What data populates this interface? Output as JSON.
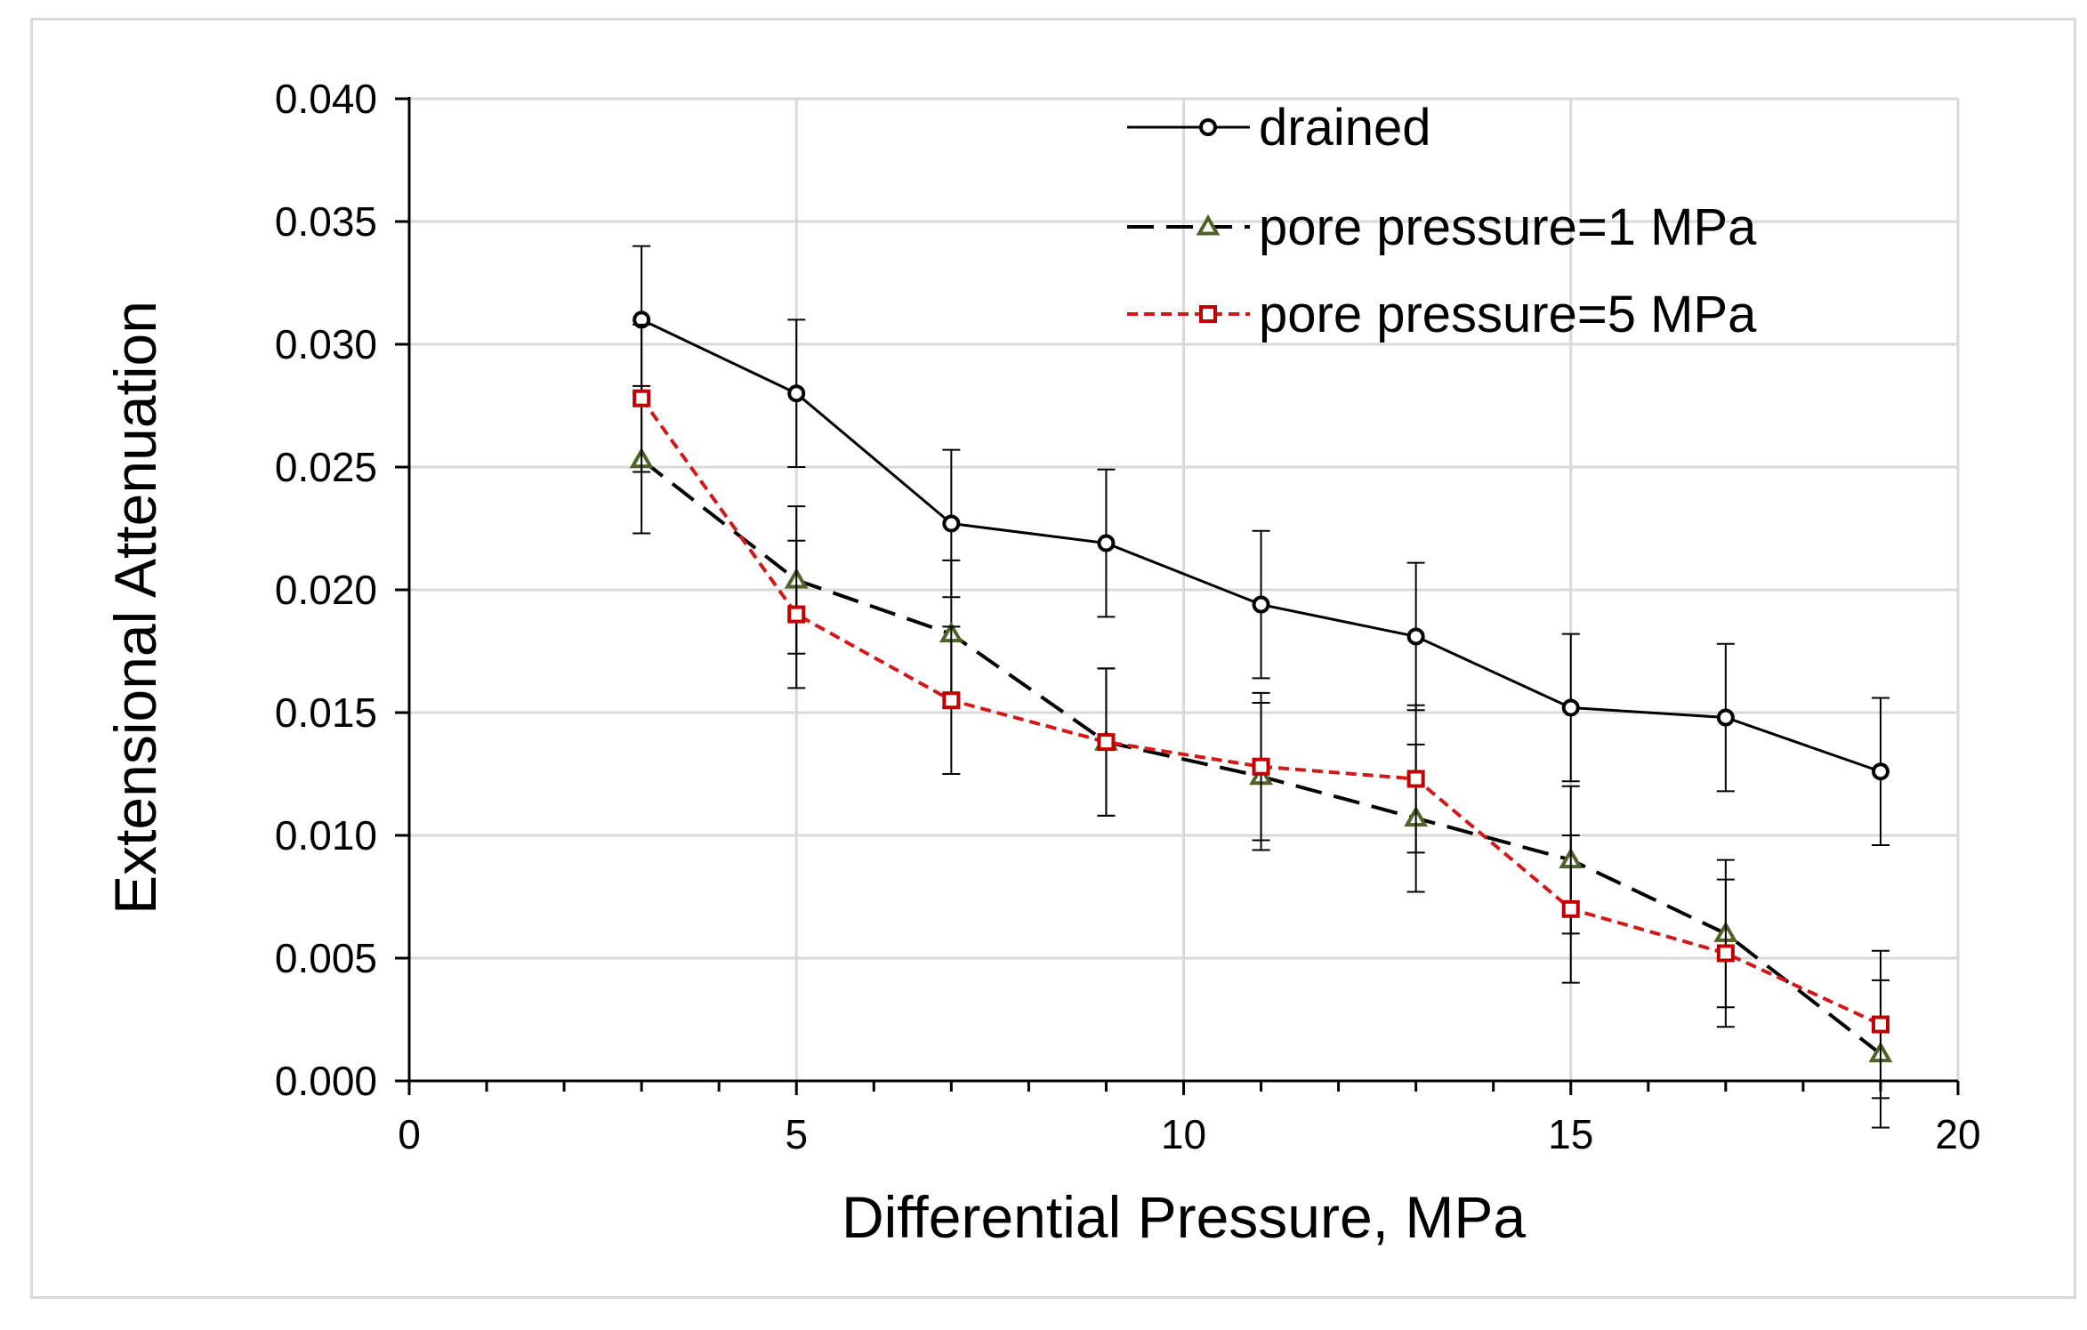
{
  "chart_data": {
    "type": "line",
    "title": "",
    "xlabel": "Differential Pressure, MPa",
    "ylabel": "Extensional Attenuation",
    "xlim": [
      0,
      20
    ],
    "ylim": [
      0,
      0.04
    ],
    "x_ticks": [
      0,
      5,
      10,
      15,
      20
    ],
    "x_tick_labels": [
      "0",
      "5",
      "10",
      "15",
      "20"
    ],
    "y_ticks": [
      0,
      0.005,
      0.01,
      0.015,
      0.02,
      0.025,
      0.03,
      0.035,
      0.04
    ],
    "y_tick_labels": [
      "0.000",
      "0.005",
      "0.010",
      "0.015",
      "0.020",
      "0.025",
      "0.030",
      "0.035",
      "0.040"
    ],
    "grid": true,
    "legend_position": "top-right",
    "x": [
      3,
      5,
      7,
      9,
      11,
      13,
      15,
      17,
      19
    ],
    "series": [
      {
        "name": "drained",
        "color": "#000000",
        "marker": "circle",
        "line_style": "solid",
        "values": [
          0.031,
          0.028,
          0.0227,
          0.0219,
          0.0194,
          0.0181,
          0.0152,
          0.0148,
          0.0126
        ],
        "error": [
          0.003,
          0.003,
          0.003,
          0.003,
          0.003,
          0.003,
          0.003,
          0.003,
          0.003
        ]
      },
      {
        "name": "pore pressure=1 MPa",
        "color": "#000000",
        "marker_color": "#4f6228",
        "marker": "triangle",
        "line_style": "long-dash",
        "values": [
          0.0253,
          0.0204,
          0.0182,
          0.0138,
          0.0124,
          0.0107,
          0.009,
          0.006,
          0.0011
        ],
        "error": [
          0.003,
          0.003,
          0.003,
          0.003,
          0.003,
          0.003,
          0.003,
          0.003,
          0.003
        ]
      },
      {
        "name": "pore pressure=5 MPa",
        "color": "#d11919",
        "marker_color": "#c00000",
        "marker": "square",
        "line_style": "short-dash",
        "values": [
          0.0278,
          0.019,
          0.0155,
          0.0138,
          0.0128,
          0.0123,
          0.007,
          0.0052,
          0.0023
        ],
        "error": [
          0.003,
          0.003,
          0.003,
          0.003,
          0.003,
          0.003,
          0.003,
          0.003,
          0.003
        ]
      }
    ]
  }
}
